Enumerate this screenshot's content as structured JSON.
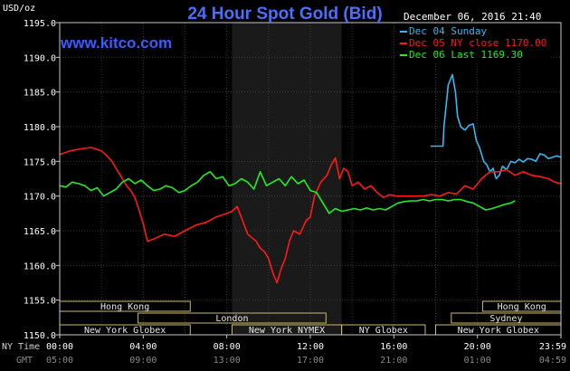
{
  "header": {
    "title": "24 Hour Spot Gold (Bid)",
    "website": "www.kitco.com",
    "y_unit": "USD/oz",
    "timestamp": "December 06, 2016 21:40"
  },
  "colors": {
    "background": "#000000",
    "plot_background": "#000000",
    "shaded_session": "#1a1a1a",
    "grid": "#3a3a3a",
    "frame": "#c8c8c8",
    "dec04": "#38b8f0",
    "dec05": "#ff1a1a",
    "dec06": "#22ee22",
    "session_box": "#cdb96a"
  },
  "legend": [
    {
      "label": "Dec 04 Sunday",
      "color": "#38b8f0"
    },
    {
      "label": "Dec 05 NY close 1170.00",
      "color": "#ff1a1a"
    },
    {
      "label": "Dec 06 Last 1169.30",
      "color": "#22ee22"
    }
  ],
  "sessions": [
    {
      "name": "Hong Kong",
      "row": 1,
      "start": 0,
      "end": 6.25
    },
    {
      "name": "Hong Kong",
      "row": 1,
      "start": 20.25,
      "end": 24
    },
    {
      "name": "London",
      "row": 2,
      "start": 3.75,
      "end": 12.75
    },
    {
      "name": "Sydney",
      "row": 2,
      "start": 18.75,
      "end": 24
    },
    {
      "name": "New York Globex",
      "row": 3,
      "start": 0,
      "end": 6.25
    },
    {
      "name": "New York NYMEX",
      "row": 3,
      "start": 8.25,
      "end": 13.5
    },
    {
      "name": "NY Globex",
      "row": 3,
      "start": 13.5,
      "end": 17.5
    },
    {
      "name": "New York Globex",
      "row": 3,
      "start": 18,
      "end": 24
    }
  ],
  "chart_data": {
    "type": "line",
    "title": "24 Hour Spot Gold (Bid)",
    "ylabel": "USD/oz",
    "ylim": [
      1150,
      1195
    ],
    "xlim": [
      0,
      24
    ],
    "yticks": [
      "1195.0",
      "1190.0",
      "1185.0",
      "1180.0",
      "1175.0",
      "1170.0",
      "1165.0",
      "1160.0",
      "1155.0",
      "1150.0"
    ],
    "ytick_values": [
      1195,
      1190,
      1185,
      1180,
      1175,
      1170,
      1165,
      1160,
      1155,
      1150
    ],
    "x_ny_labels": [
      "00:00",
      "04:00",
      "08:00",
      "12:00",
      "16:00",
      "20:00",
      "23:59"
    ],
    "x_gmt_labels": [
      "05:00",
      "09:00",
      "13:00",
      "17:00",
      "21:00",
      "01:00",
      "04:59"
    ],
    "x_row_titles": [
      "NY Time",
      "GMT"
    ],
    "shaded_range": [
      8.25,
      13.5
    ],
    "grid": true,
    "series": [
      {
        "name": "Dec 04 Sunday",
        "color": "#38b8f0",
        "x": [
          17.75,
          18.35,
          18.4,
          18.6,
          18.8,
          18.95,
          19.05,
          19.2,
          19.4,
          19.6,
          19.8,
          19.95,
          20.1,
          20.3,
          20.45,
          20.6,
          20.75,
          20.9,
          21.05,
          21.2,
          21.4,
          21.6,
          21.8,
          22.0,
          22.2,
          22.4,
          22.6,
          22.8,
          23.0,
          23.2,
          23.4,
          23.6,
          23.8,
          23.99
        ],
        "values": [
          1177.2,
          1177.2,
          1180.0,
          1186.0,
          1187.5,
          1185.0,
          1181.5,
          1180.0,
          1179.5,
          1180.2,
          1180.4,
          1178.0,
          1177.0,
          1175.0,
          1174.5,
          1173.5,
          1174.0,
          1172.5,
          1173.0,
          1174.3,
          1173.8,
          1175.0,
          1174.8,
          1175.3,
          1174.9,
          1175.4,
          1175.3,
          1175.0,
          1176.1,
          1175.9,
          1175.4,
          1175.6,
          1175.8,
          1175.6
        ]
      },
      {
        "name": "Dec 05 NY close 1170.00",
        "color": "#ff1a1a",
        "x": [
          0,
          0.5,
          1.0,
          1.5,
          2.0,
          2.2,
          2.5,
          2.8,
          3.0,
          3.2,
          3.4,
          3.6,
          3.8,
          4.0,
          4.2,
          4.5,
          5.0,
          5.5,
          6.0,
          6.5,
          7.0,
          7.5,
          8.0,
          8.25,
          8.5,
          8.75,
          9.0,
          9.2,
          9.4,
          9.6,
          9.8,
          10.0,
          10.2,
          10.4,
          10.6,
          10.8,
          11.0,
          11.2,
          11.5,
          11.8,
          12.0,
          12.2,
          12.5,
          12.8,
          13.0,
          13.2,
          13.4,
          13.6,
          13.8,
          14.0,
          14.3,
          14.6,
          14.9,
          15.2,
          15.5,
          15.8,
          16.1,
          16.4,
          16.7,
          17.0,
          17.4,
          17.8,
          18.2,
          18.6,
          19.0,
          19.4,
          19.8,
          20.2,
          20.6,
          21.0,
          21.4,
          21.8,
          22.2,
          22.6,
          23.0,
          23.4,
          23.7,
          23.99
        ],
        "values": [
          1176.0,
          1176.5,
          1176.8,
          1177.0,
          1176.5,
          1176.0,
          1175.0,
          1173.5,
          1172.5,
          1171.5,
          1170.8,
          1169.8,
          1168.0,
          1166.0,
          1163.5,
          1163.8,
          1164.5,
          1164.2,
          1165.0,
          1165.8,
          1166.2,
          1167.0,
          1167.5,
          1167.8,
          1168.5,
          1166.5,
          1164.5,
          1164.0,
          1163.5,
          1162.5,
          1162.0,
          1161.0,
          1159.0,
          1157.5,
          1159.5,
          1161.0,
          1163.5,
          1165.0,
          1164.5,
          1166.5,
          1167.0,
          1170.0,
          1172.0,
          1173.0,
          1174.5,
          1175.5,
          1172.5,
          1174.0,
          1173.5,
          1171.5,
          1172.0,
          1171.0,
          1171.5,
          1170.5,
          1169.8,
          1170.2,
          1170.0,
          1170.0,
          1170.0,
          1170.0,
          1170.0,
          1170.2,
          1170.0,
          1170.5,
          1170.3,
          1171.5,
          1171.0,
          1172.5,
          1173.5,
          1173.5,
          1173.8,
          1173.0,
          1173.5,
          1173.0,
          1172.8,
          1172.5,
          1172.0,
          1171.8
        ]
      },
      {
        "name": "Dec 06 Last 1169.30",
        "color": "#22ee22",
        "x": [
          0,
          0.3,
          0.6,
          0.9,
          1.2,
          1.5,
          1.8,
          2.1,
          2.4,
          2.7,
          3.0,
          3.3,
          3.6,
          3.9,
          4.2,
          4.5,
          4.8,
          5.1,
          5.4,
          5.7,
          6.0,
          6.3,
          6.6,
          6.9,
          7.2,
          7.5,
          7.8,
          8.1,
          8.4,
          8.7,
          9.0,
          9.3,
          9.6,
          9.9,
          10.2,
          10.5,
          10.8,
          11.1,
          11.4,
          11.7,
          12.0,
          12.3,
          12.6,
          12.9,
          13.2,
          13.5,
          13.8,
          14.1,
          14.4,
          14.7,
          15.0,
          15.3,
          15.6,
          15.9,
          16.2,
          16.5,
          16.8,
          17.1,
          17.4,
          17.7,
          18.0,
          18.3,
          18.6,
          18.9,
          19.2,
          19.5,
          19.8,
          20.1,
          20.4,
          20.7,
          21.0,
          21.3,
          21.6,
          21.8
        ],
        "values": [
          1171.5,
          1171.3,
          1172.0,
          1171.8,
          1171.5,
          1170.8,
          1171.2,
          1170.0,
          1170.5,
          1171.0,
          1172.0,
          1172.5,
          1171.8,
          1172.3,
          1171.5,
          1170.8,
          1171.0,
          1171.5,
          1171.2,
          1170.5,
          1170.8,
          1171.5,
          1172.0,
          1173.0,
          1173.5,
          1172.5,
          1172.8,
          1171.5,
          1171.8,
          1172.5,
          1172.0,
          1171.0,
          1173.5,
          1171.5,
          1172.0,
          1172.5,
          1171.5,
          1172.8,
          1171.8,
          1172.3,
          1170.8,
          1170.5,
          1169.0,
          1167.5,
          1168.2,
          1167.8,
          1168.0,
          1168.2,
          1168.0,
          1168.3,
          1168.0,
          1168.2,
          1168.0,
          1168.5,
          1169.0,
          1169.2,
          1169.3,
          1169.3,
          1169.5,
          1169.3,
          1169.5,
          1169.5,
          1169.3,
          1169.5,
          1169.5,
          1169.2,
          1169.0,
          1168.5,
          1168.0,
          1168.2,
          1168.5,
          1168.8,
          1169.0,
          1169.3
        ]
      }
    ]
  }
}
